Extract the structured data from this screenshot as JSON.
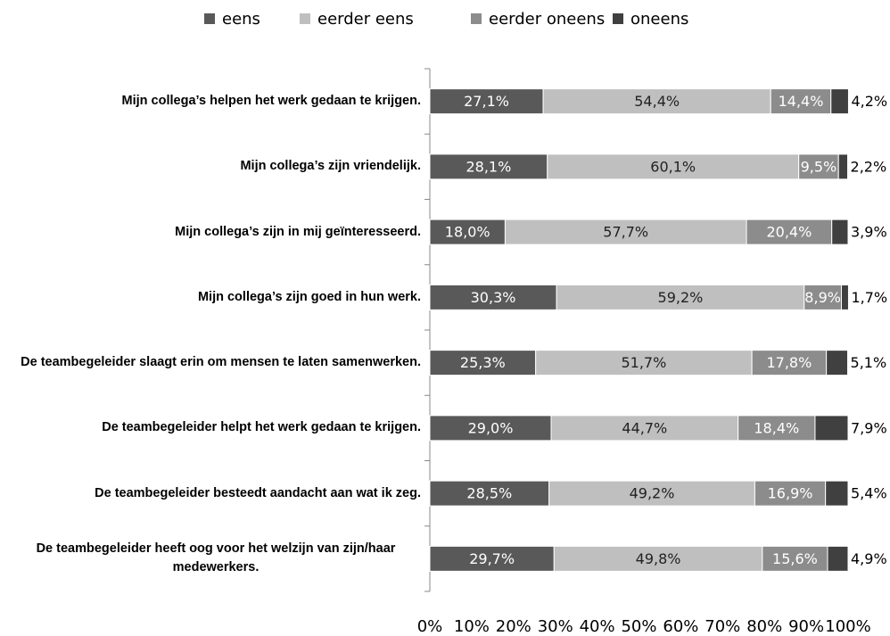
{
  "chart_data": {
    "type": "stacked_barh",
    "categories": [
      "Mijn collega’s helpen het werk gedaan te krijgen.",
      "Mijn collega’s zijn vriendelijk.",
      "Mijn collega’s zijn in mij geïnteresseerd.",
      "Mijn collega’s zijn goed in hun werk.",
      "De teambegeleider slaagt erin om mensen te laten samenwerken.",
      "De teambegeleider helpt het werk gedaan te krijgen.",
      "De teambegeleider besteedt aandacht aan wat ik zeg.",
      "De teambegeleider heeft oog voor het welzijn van zijn/haar medewerkers."
    ],
    "series": [
      {
        "name": "eens",
        "color": "#595959",
        "values": [
          27.1,
          28.1,
          18.0,
          30.3,
          25.3,
          29.0,
          28.5,
          29.7
        ],
        "value_labels": [
          "27,1%",
          "28,1%",
          "18,0%",
          "30,3%",
          "25,3%",
          "29,0%",
          "28,5%",
          "29,7%"
        ]
      },
      {
        "name": "eerder eens",
        "color": "#bfbfbf",
        "values": [
          54.4,
          60.1,
          57.7,
          59.2,
          51.7,
          44.7,
          49.2,
          49.8
        ],
        "value_labels": [
          "54,4%",
          "60,1%",
          "57,7%",
          "59,2%",
          "51,7%",
          "44,7%",
          "49,2%",
          "49,8%"
        ]
      },
      {
        "name": "eerder oneens",
        "color": "#8c8c8c",
        "values": [
          14.4,
          9.5,
          20.4,
          8.9,
          17.8,
          18.4,
          16.9,
          15.6
        ],
        "value_labels": [
          "14,4%",
          "9,5%",
          "20,4%",
          "8,9%",
          "17,8%",
          "18,4%",
          "16,9%",
          "15,6%"
        ]
      },
      {
        "name": "oneens",
        "color": "#404040",
        "values": [
          4.2,
          2.2,
          3.9,
          1.7,
          5.1,
          7.9,
          5.4,
          4.9
        ],
        "value_labels": [
          "4,2%",
          "2,2%",
          "3,9%",
          "1,7%",
          "5,1%",
          "7,9%",
          "5,4%",
          "4,9%"
        ]
      }
    ],
    "xlim": [
      0,
      100
    ],
    "xticks": [
      {
        "value": 0,
        "label": "0%"
      },
      {
        "value": 10,
        "label": "10%"
      },
      {
        "value": 20,
        "label": "20%"
      },
      {
        "value": 30,
        "label": "30%"
      },
      {
        "value": 40,
        "label": "40%"
      },
      {
        "value": 50,
        "label": "50%"
      },
      {
        "value": 60,
        "label": "60%"
      },
      {
        "value": 70,
        "label": "70%"
      },
      {
        "value": 80,
        "label": "80%"
      },
      {
        "value": 90,
        "label": "90%"
      },
      {
        "value": 100,
        "label": "100%"
      }
    ],
    "legend": "top"
  }
}
